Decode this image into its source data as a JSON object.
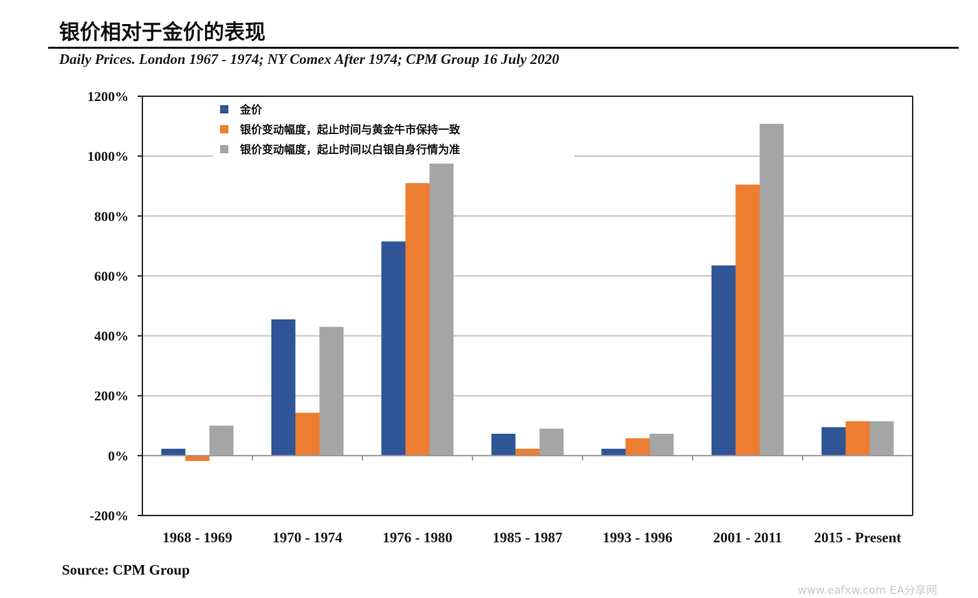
{
  "header": {
    "title": "银价相对于金价的表现",
    "subtitle": "Daily Prices. London 1967 - 1974; NY Comex After 1974; CPM Group 16 July 2020"
  },
  "footer": {
    "source": "Source: CPM Group",
    "watermark": "www.eafxw.com  EA分享网"
  },
  "chart_data": {
    "type": "bar",
    "categories": [
      "1968 - 1969",
      "1970 - 1974",
      "1976 - 1980",
      "1985 - 1987",
      "1993 - 1996",
      "2001 - 2011",
      "2015 - Present"
    ],
    "series": [
      {
        "name": "金价",
        "color": "#2F5597",
        "values": [
          23,
          455,
          715,
          73,
          23,
          635,
          95
        ]
      },
      {
        "name": "银价变动幅度，起止时间与黄金牛市保持一致",
        "color": "#ED7D31",
        "values": [
          -18,
          143,
          910,
          23,
          58,
          905,
          115
        ]
      },
      {
        "name": "银价变动幅度，起止时间以白银自身行情为准",
        "color": "#A5A5A5",
        "values": [
          100,
          430,
          975,
          90,
          73,
          1108,
          115
        ]
      }
    ],
    "ylim": [
      -200,
      1200
    ],
    "yticks": [
      -200,
      0,
      200,
      400,
      600,
      800,
      1000,
      1200
    ],
    "ytick_labels": [
      "-200%",
      "0%",
      "200%",
      "400%",
      "600%",
      "800%",
      "1000%",
      "1200%"
    ],
    "grid": true,
    "legend_position": "top-left"
  }
}
